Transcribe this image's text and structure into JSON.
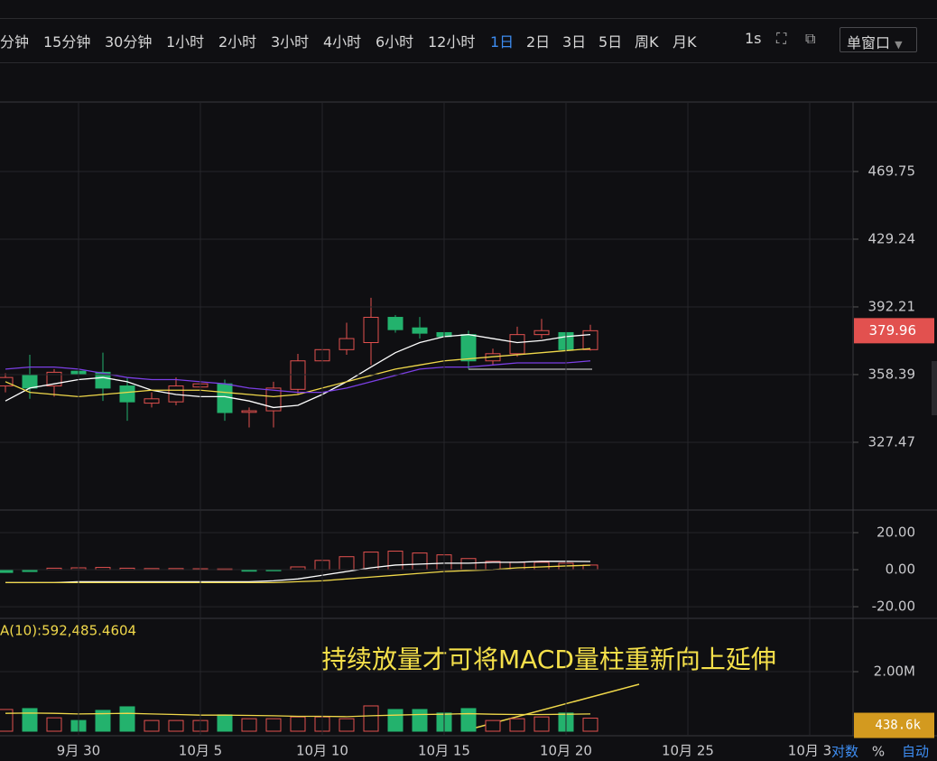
{
  "toolbar": {
    "intervals": [
      "分钟",
      "15分钟",
      "30分钟",
      "1小时",
      "2小时",
      "3小时",
      "4小时",
      "6小时",
      "12小时",
      "1日",
      "2日",
      "3日",
      "5日",
      "周K",
      "月K"
    ],
    "active": "1日",
    "realtime": "1s",
    "window": "单窗口"
  },
  "scale_options": [
    "对数",
    "%",
    "自动"
  ],
  "annotation": "持续放量才可将MACD量柱重新向上延伸",
  "chart_data": [
    {
      "type": "candlestick",
      "log": true,
      "grid": true,
      "up_color": "#e2514f",
      "down_color": "#23b26d",
      "categories": [
        null,
        null,
        null,
        "9月 30",
        null,
        null,
        null,
        null,
        "10月 5",
        null,
        null,
        null,
        null,
        "10月 10",
        null,
        null,
        null,
        null,
        "10月 15",
        null,
        null,
        null,
        null,
        "10月 20",
        null,
        null,
        null,
        null,
        "10月 25",
        null,
        null,
        null,
        null,
        "10月 3"
      ],
      "open": [
        353,
        358,
        353,
        360,
        359.5,
        353,
        345,
        345.6,
        352.5,
        354,
        340.8,
        341.5,
        351.4,
        365,
        370.5,
        374,
        386.8,
        381.4,
        379,
        378,
        365,
        368.5,
        378,
        379,
        370.5,
        null,
        null,
        null,
        null,
        null,
        null,
        null,
        null,
        null
      ],
      "high": [
        359,
        368,
        361,
        364,
        369,
        357,
        350,
        357,
        357,
        356,
        343,
        355,
        368.4,
        375,
        384,
        397,
        388,
        387,
        382,
        380,
        371,
        382,
        386,
        381,
        383,
        null,
        null,
        null,
        null,
        null,
        null,
        null,
        null,
        null
      ],
      "low": [
        350,
        347,
        348,
        352,
        346,
        337,
        343,
        344,
        350,
        337,
        334,
        334,
        349,
        358,
        368,
        363,
        379,
        376,
        375,
        361,
        363,
        367,
        376,
        368,
        370,
        null,
        null,
        null,
        null,
        null,
        null,
        null,
        null,
        null
      ],
      "close": [
        357,
        352,
        359.5,
        358.5,
        352,
        345.6,
        347,
        353,
        354,
        340.7,
        341.5,
        352,
        365,
        370.5,
        376,
        386.8,
        380.5,
        378.7,
        377,
        365,
        368.5,
        378,
        380,
        370.5,
        379.96,
        null,
        null,
        null,
        null,
        null,
        null,
        null,
        null,
        null
      ],
      "series": [
        {
          "color": "#ffffff",
          "values": [
            346,
            352,
            354,
            356,
            357,
            355,
            351,
            349,
            348,
            348,
            346,
            343,
            344,
            349,
            355,
            362,
            369,
            374,
            377,
            378,
            376,
            374,
            375,
            377,
            378,
            null,
            null,
            null,
            null,
            null,
            null,
            null,
            null,
            null
          ]
        },
        {
          "color": "#f0d84a",
          "values": [
            355,
            350,
            349,
            348,
            349,
            350,
            351,
            351,
            351,
            350,
            349,
            348,
            349,
            352,
            355,
            358,
            361,
            363,
            365,
            366,
            367,
            368,
            369,
            370,
            371,
            null,
            null,
            null,
            null,
            null,
            null,
            null,
            null,
            null
          ]
        },
        {
          "color": "#7b3fe4",
          "values": [
            361,
            362,
            362,
            361,
            359,
            357,
            356,
            356,
            355,
            354,
            352,
            351,
            350,
            350,
            352,
            355,
            358,
            361,
            362,
            362,
            363,
            364,
            364,
            364,
            365,
            null,
            null,
            null,
            null,
            null,
            null,
            null,
            null,
            null
          ]
        }
      ],
      "ylim": [
        299.2,
        514.1
      ],
      "yticks": [
        469.75,
        429.24,
        392.21,
        358.39,
        327.47
      ]
    },
    {
      "type": "bar",
      "grid": true,
      "up_color": "#e2514f",
      "down_color": "#23b26d",
      "values": [
        -1.5,
        -1,
        0.8,
        1,
        1.2,
        0.8,
        0.6,
        0.6,
        0.5,
        0.4,
        -0.8,
        -0.6,
        1.5,
        5,
        7,
        9.5,
        10,
        9,
        8,
        6,
        4.5,
        4,
        4,
        3.5,
        2.5
      ],
      "series": [
        {
          "color": "#ffffff",
          "values": [
            -7,
            -7,
            -7,
            -6.5,
            -6.5,
            -6.5,
            -6.5,
            -6.5,
            -6.5,
            -6.5,
            -6.5,
            -6,
            -5,
            -3,
            -1,
            1,
            2.5,
            3,
            3.5,
            3.5,
            4,
            4,
            4.5,
            4.5,
            4.4
          ]
        },
        {
          "color": "#f0d84a",
          "values": [
            -7,
            -7,
            -7,
            -7,
            -7,
            -7,
            -7,
            -7,
            -7,
            -7,
            -7,
            -7,
            -6.5,
            -6,
            -5,
            -4,
            -3,
            -2,
            -1,
            -0.5,
            0,
            1,
            1.5,
            2,
            2.4
          ]
        }
      ],
      "ylim": [
        -26.3,
        32.2
      ],
      "yticks": [
        {
          "value": 20,
          "label": "20.00"
        },
        {
          "value": 0,
          "label": "0.00"
        },
        {
          "value": -20,
          "label": "-20.00"
        }
      ]
    },
    {
      "type": "volume",
      "ma_label": "A(10):592,485.4604",
      "values": [
        730000,
        760000,
        450000,
        360000,
        700000,
        820000,
        360000,
        360000,
        360000,
        550000,
        420000,
        420000,
        480000,
        480000,
        420000,
        850000,
        730000,
        730000,
        610000,
        760000,
        360000,
        420000,
        480000,
        610000,
        438600
      ],
      "value_labels": [
        null,
        null,
        null,
        null,
        null,
        null,
        null,
        null,
        null,
        null,
        null,
        null,
        null,
        null,
        null,
        null,
        null,
        null,
        null,
        null,
        null,
        null,
        null,
        null,
        "438.6k"
      ],
      "series": [
        {
          "color": "#f0d84a",
          "values": [
            600000,
            610000,
            600000,
            580000,
            590000,
            600000,
            580000,
            560000,
            540000,
            540000,
            530000,
            520000,
            500000,
            500000,
            490000,
            520000,
            540000,
            560000,
            570000,
            590000,
            570000,
            560000,
            560000,
            570000,
            580000
          ]
        }
      ],
      "ylim": [
        0,
        3790000
      ],
      "yticks": [
        {
          "value": 2000000,
          "label": "2.00M"
        }
      ]
    }
  ]
}
